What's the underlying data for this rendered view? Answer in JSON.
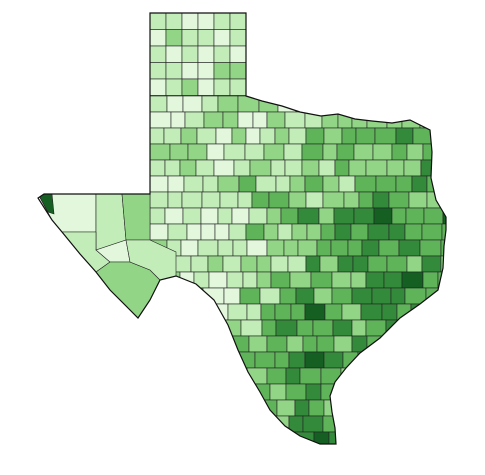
{
  "map": {
    "type": "choropleth",
    "region": "Texas counties",
    "palette": [
      "#e2f7dc",
      "#c2ecb8",
      "#93d587",
      "#5fb45a",
      "#338a3a",
      "#155f22"
    ],
    "background": "#ffffff",
    "border_color": "#222222",
    "legend": null,
    "title": null
  }
}
